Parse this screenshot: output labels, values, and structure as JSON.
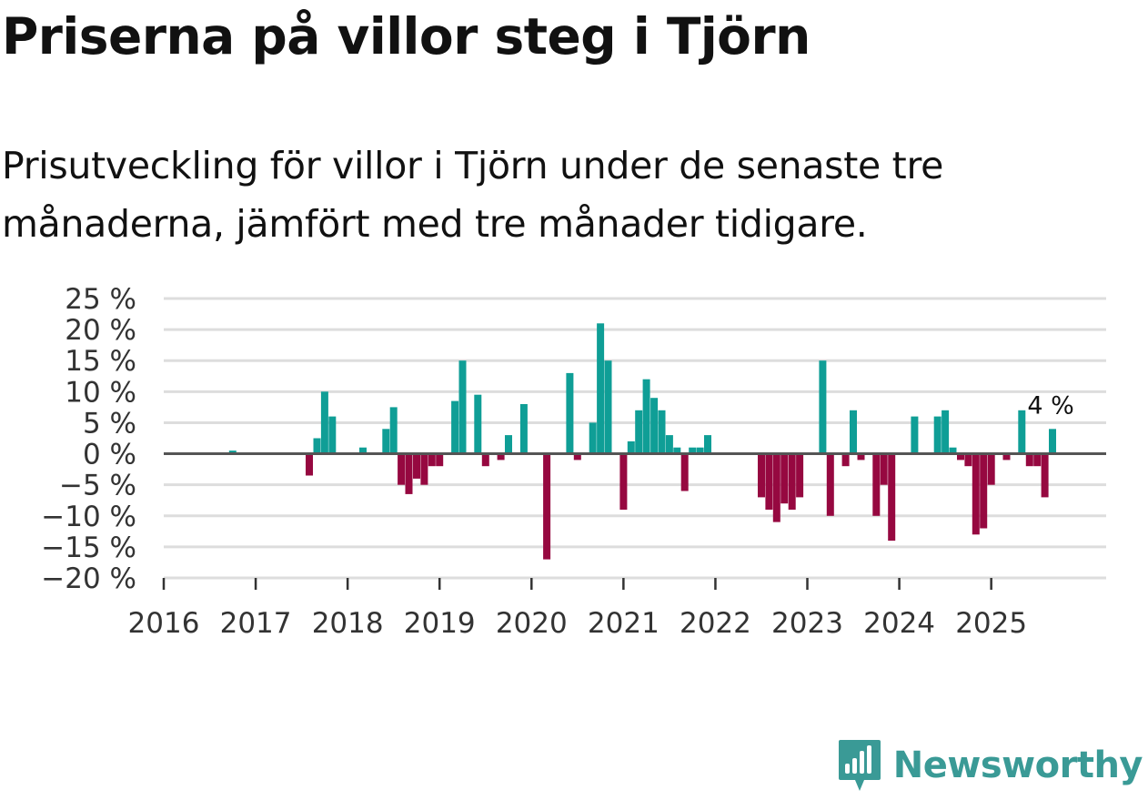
{
  "header": {
    "title": "Priserna på villor steg i Tjörn",
    "subtitle": "Prisutveckling för villor i Tjörn under de senaste tre månaderna, jämfört med tre månader tidigare."
  },
  "colors": {
    "positive": "#0f9e96",
    "negative": "#960840",
    "grid": "#dddddd",
    "zero_line": "#555555",
    "brand": "#3a9a96"
  },
  "chart_data": {
    "type": "bar",
    "title": "Priserna på villor steg i Tjörn",
    "subtitle": "Prisutveckling för villor i Tjörn under de senaste tre månaderna, jämfört med tre månader tidigare.",
    "xlabel": "",
    "ylabel": "",
    "ylim": [
      -20,
      25
    ],
    "x_range": [
      2016.0,
      2026.25
    ],
    "y_ticks": [
      25,
      20,
      15,
      10,
      5,
      0,
      -5,
      -10,
      -15,
      -20
    ],
    "y_tick_labels": [
      "25 %",
      "20 %",
      "15 %",
      "10 %",
      "5 %",
      "0 %",
      "−5 %",
      "−10 %",
      "−15 %",
      "−20 %"
    ],
    "x_ticks": [
      2016,
      2017,
      2018,
      2019,
      2020,
      2021,
      2022,
      2023,
      2024,
      2025
    ],
    "x_tick_labels": [
      "2016",
      "2017",
      "2018",
      "2019",
      "2020",
      "2021",
      "2022",
      "2023",
      "2024",
      "2025"
    ],
    "grid": true,
    "series": [
      {
        "name": "Prisutveckling",
        "points": [
          {
            "date": "2016-10",
            "value": 0.5
          },
          {
            "date": "2017-08",
            "value": -3.5
          },
          {
            "date": "2017-09",
            "value": 2.5
          },
          {
            "date": "2017-10",
            "value": 10
          },
          {
            "date": "2017-11",
            "value": 6
          },
          {
            "date": "2018-03",
            "value": 1
          },
          {
            "date": "2018-06",
            "value": 4
          },
          {
            "date": "2018-07",
            "value": 7.5
          },
          {
            "date": "2018-08",
            "value": -5
          },
          {
            "date": "2018-09",
            "value": -6.5
          },
          {
            "date": "2018-10",
            "value": -4
          },
          {
            "date": "2018-11",
            "value": -5
          },
          {
            "date": "2018-12",
            "value": -2
          },
          {
            "date": "2019-01",
            "value": -2
          },
          {
            "date": "2019-03",
            "value": 8.5
          },
          {
            "date": "2019-04",
            "value": 15
          },
          {
            "date": "2019-06",
            "value": 9.5
          },
          {
            "date": "2019-07",
            "value": -2
          },
          {
            "date": "2019-09",
            "value": -1
          },
          {
            "date": "2019-10",
            "value": 3
          },
          {
            "date": "2019-12",
            "value": 8
          },
          {
            "date": "2020-03",
            "value": -17
          },
          {
            "date": "2020-06",
            "value": 13
          },
          {
            "date": "2020-07",
            "value": -1
          },
          {
            "date": "2020-09",
            "value": 5
          },
          {
            "date": "2020-10",
            "value": 21
          },
          {
            "date": "2020-11",
            "value": 15
          },
          {
            "date": "2021-01",
            "value": -9
          },
          {
            "date": "2021-02",
            "value": 2
          },
          {
            "date": "2021-03",
            "value": 7
          },
          {
            "date": "2021-04",
            "value": 12
          },
          {
            "date": "2021-05",
            "value": 9
          },
          {
            "date": "2021-06",
            "value": 7
          },
          {
            "date": "2021-07",
            "value": 3
          },
          {
            "date": "2021-08",
            "value": 1
          },
          {
            "date": "2021-09",
            "value": -6
          },
          {
            "date": "2021-10",
            "value": 1
          },
          {
            "date": "2021-11",
            "value": 1
          },
          {
            "date": "2021-12",
            "value": 3
          },
          {
            "date": "2022-07",
            "value": -7
          },
          {
            "date": "2022-08",
            "value": -9
          },
          {
            "date": "2022-09",
            "value": -11
          },
          {
            "date": "2022-10",
            "value": -8
          },
          {
            "date": "2022-11",
            "value": -9
          },
          {
            "date": "2022-12",
            "value": -7
          },
          {
            "date": "2023-03",
            "value": 15
          },
          {
            "date": "2023-04",
            "value": -10
          },
          {
            "date": "2023-06",
            "value": -2
          },
          {
            "date": "2023-07",
            "value": 7
          },
          {
            "date": "2023-08",
            "value": -1
          },
          {
            "date": "2023-10",
            "value": -10
          },
          {
            "date": "2023-11",
            "value": -5
          },
          {
            "date": "2023-12",
            "value": -14
          },
          {
            "date": "2024-03",
            "value": 6
          },
          {
            "date": "2024-06",
            "value": 6
          },
          {
            "date": "2024-07",
            "value": 7
          },
          {
            "date": "2024-08",
            "value": 1
          },
          {
            "date": "2024-09",
            "value": -1
          },
          {
            "date": "2024-10",
            "value": -2
          },
          {
            "date": "2024-11",
            "value": -13
          },
          {
            "date": "2024-12",
            "value": -12
          },
          {
            "date": "2025-01",
            "value": -5
          },
          {
            "date": "2025-03",
            "value": -1
          },
          {
            "date": "2025-05",
            "value": 7
          },
          {
            "date": "2025-06",
            "value": -2
          },
          {
            "date": "2025-07",
            "value": -2
          },
          {
            "date": "2025-08",
            "value": -7
          },
          {
            "date": "2025-09",
            "value": 4
          }
        ]
      }
    ],
    "annotation": {
      "date": "2025-09",
      "text": "4 %"
    }
  },
  "brand": {
    "name": "Newsworthy"
  }
}
